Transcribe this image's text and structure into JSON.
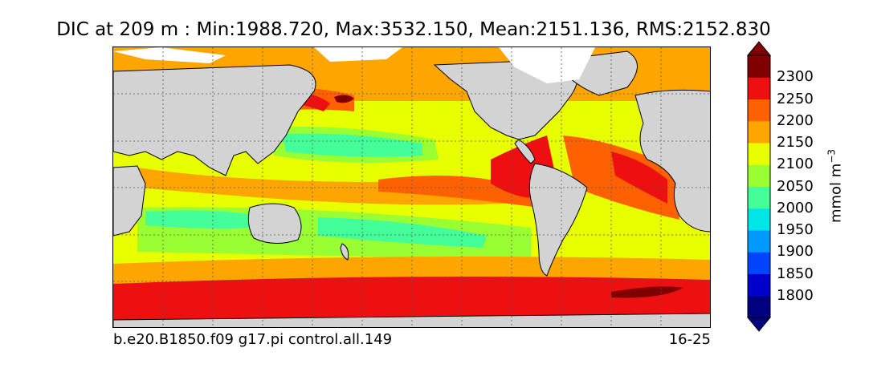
{
  "title": "DIC at 209 m : Min:1988.720, Max:3532.150, Mean:2151.136, RMS:2152.830",
  "footer": {
    "run": "b.e20.B1850.f09 g17.pi control.all.149",
    "date": "16-25"
  },
  "colorbar": {
    "units_base": "mmol m",
    "units_exp": "−3",
    "ticks": [
      "2300",
      "2250",
      "2200",
      "2150",
      "2100",
      "2050",
      "2000",
      "1950",
      "1900",
      "1850",
      "1800"
    ],
    "colors": [
      "#000080",
      "#0000cd",
      "#0044ff",
      "#0099ff",
      "#00e5e5",
      "#44ff99",
      "#99ff33",
      "#e8ff00",
      "#ffa500",
      "#ff6000",
      "#ee1010",
      "#800000"
    ],
    "under_color": "#000080",
    "over_color": "#800000"
  },
  "chart_data": {
    "type": "heatmap",
    "title": "DIC at 209 m : Min:1988.720, Max:3532.150, Mean:2151.136, RMS:2152.830",
    "variable": "DIC",
    "depth": "209 m",
    "stats": {
      "min": 1988.72,
      "max": 3532.15,
      "mean": 2151.136,
      "rms": 2152.83
    },
    "levels": [
      1800,
      1850,
      1900,
      1950,
      2000,
      2050,
      2100,
      2150,
      2200,
      2250,
      2300
    ],
    "colorbar_label": "mmol m−3",
    "land_color": "#d3d3d3",
    "grid": true,
    "extend": "both"
  }
}
